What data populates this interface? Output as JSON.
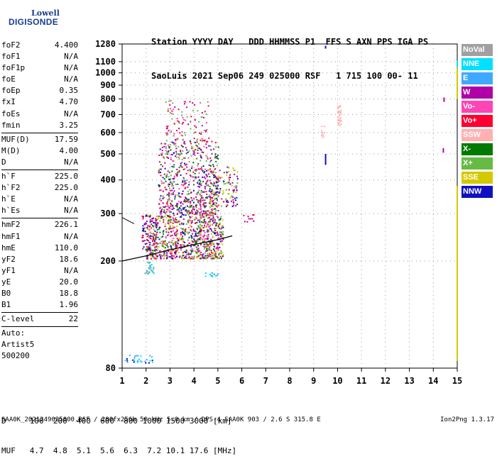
{
  "logo": {
    "line1": "Lowell",
    "line2": "DIGISONDE"
  },
  "header": {
    "line1": "Station YYYY DAY   DDD HHMMSS P1  FFS S AXN PPS IGA PS",
    "line2": "SaoLuis 2021 Sep06 249 025000 RSF   1 715 100 00- 11"
  },
  "params": [
    {
      "label": "foF2",
      "value": "4.400"
    },
    {
      "label": "foF1",
      "value": "N/A"
    },
    {
      "label": "foF1p",
      "value": "N/A"
    },
    {
      "label": "foE",
      "value": "N/A"
    },
    {
      "label": "foEp",
      "value": "0.35"
    },
    {
      "label": "fxI",
      "value": "4.70"
    },
    {
      "label": "foEs",
      "value": "N/A"
    },
    {
      "label": "fmin",
      "value": "3.25"
    },
    {
      "sep": true
    },
    {
      "label": "MUF(D)",
      "value": "17.59"
    },
    {
      "label": "M(D)",
      "value": "4.00"
    },
    {
      "label": "D",
      "value": "N/A"
    },
    {
      "sep": true
    },
    {
      "label": "h`F",
      "value": "225.0"
    },
    {
      "label": "h`F2",
      "value": "225.0"
    },
    {
      "label": "h`E",
      "value": "N/A"
    },
    {
      "label": "h`Es",
      "value": "N/A"
    },
    {
      "sep": true
    },
    {
      "label": "hmF2",
      "value": "226.1"
    },
    {
      "label": "hmF1",
      "value": "N/A"
    },
    {
      "label": "hmE",
      "value": "110.0"
    },
    {
      "label": "yF2",
      "value": "18.6"
    },
    {
      "label": "yF1",
      "value": "N/A"
    },
    {
      "label": "yE",
      "value": "20.0"
    },
    {
      "label": "B0",
      "value": "18.8"
    },
    {
      "label": "B1",
      "value": "1.96"
    },
    {
      "sep": true
    },
    {
      "label": "C-level",
      "value": "22"
    },
    {
      "sep": true
    },
    {
      "label": "Auto:",
      "value": ""
    },
    {
      "label": "Artist5",
      "value": ""
    },
    {
      "label": "500200",
      "value": ""
    }
  ],
  "distance_table": {
    "d_row": "D     100  200  400  600  800 1000 1500 3000 [km]",
    "muf_row": "MUF   4.7  4.8  5.1  5.6  6.3  7.2 10.1 17.6 [MHz]"
  },
  "footer": "SAA0K_2021249025000.RSF / 280fx256h 50 kHz 5.0 km / DPS-4 SAA0K 903 / 2.6 S 315.8 E",
  "version": "Ion2Png 1.3.17",
  "legend": [
    {
      "label": "NoVal",
      "color": "#a0a0a0"
    },
    {
      "label": "NNE",
      "color": "#00e0ff"
    },
    {
      "label": "E",
      "color": "#3fa9ff"
    },
    {
      "label": "W",
      "color": "#b000a8"
    },
    {
      "label": "Vo-",
      "color": "#ff44b4"
    },
    {
      "label": "Vo+",
      "color": "#ff0030"
    },
    {
      "label": "SSW",
      "color": "#ffb0b0"
    },
    {
      "label": "X-",
      "color": "#007a00"
    },
    {
      "label": "X+",
      "color": "#66bb44"
    },
    {
      "label": "SSE",
      "color": "#d4c800"
    },
    {
      "label": "NNW",
      "color": "#1010c0"
    }
  ],
  "chart_data": {
    "type": "scatter",
    "title": "",
    "xlabel": "",
    "ylabel": "",
    "xlim": [
      1,
      15
    ],
    "ylim": [
      80,
      1280
    ],
    "y_scale": "log",
    "x_ticks": [
      1,
      2,
      3,
      4,
      5,
      6,
      7,
      8,
      9,
      10,
      11,
      12,
      13,
      14,
      15
    ],
    "y_ticks": [
      80,
      200,
      300,
      400,
      500,
      600,
      700,
      800,
      900,
      1000,
      1100,
      1280
    ],
    "grid": true,
    "legend_position": "right",
    "trace_line": [
      [
        1,
        200
      ],
      [
        2,
        209
      ],
      [
        3,
        220
      ],
      [
        4,
        230
      ],
      [
        5,
        240
      ],
      [
        5.6,
        248
      ]
    ],
    "clusters": [
      {
        "x": [
          2.0,
          5.2
        ],
        "y": [
          205,
          300
        ],
        "colors": [
          "W",
          "Vo+",
          "NNW",
          "X-",
          "X+",
          "SSE",
          "Vo-"
        ],
        "density": 900
      },
      {
        "x": [
          2.5,
          5.0
        ],
        "y": [
          300,
          560
        ],
        "colors": [
          "W",
          "Vo+",
          "Vo-",
          "X+",
          "X-",
          "NNW"
        ],
        "density": 650
      },
      {
        "x": [
          2.8,
          4.6
        ],
        "y": [
          560,
          800
        ],
        "colors": [
          "W",
          "Vo-",
          "X+",
          "Vo+"
        ],
        "density": 110
      },
      {
        "x": [
          4.6,
          5.8
        ],
        "y": [
          320,
          450
        ],
        "colors": [
          "W",
          "X+",
          "Vo+",
          "SSE",
          "NNW"
        ],
        "density": 140
      },
      {
        "x": [
          1.8,
          2.4
        ],
        "y": [
          220,
          300
        ],
        "colors": [
          "NNW",
          "Vo+",
          "W"
        ],
        "density": 60
      },
      {
        "x": [
          1.9,
          2.3
        ],
        "y": [
          180,
          200
        ],
        "colors": [
          "NNE",
          "X+",
          "E"
        ],
        "density": 25
      },
      {
        "x": [
          1.1,
          2.3
        ],
        "y": [
          84,
          90
        ],
        "colors": [
          "NNW",
          "NNE",
          "E"
        ],
        "density": 30
      },
      {
        "x": [
          4.4,
          5.0
        ],
        "y": [
          176,
          182
        ],
        "colors": [
          "NNE",
          "E"
        ],
        "density": 14
      },
      {
        "x": [
          5.8,
          6.8
        ],
        "y": [
          280,
          300
        ],
        "colors": [
          "Vo+",
          "W"
        ],
        "density": 10
      },
      {
        "x": [
          9.98,
          10.12
        ],
        "y": [
          640,
          760
        ],
        "colors": [
          "SSW"
        ],
        "density": 30
      },
      {
        "x": [
          9.3,
          9.45
        ],
        "y": [
          580,
          650
        ],
        "colors": [
          "SSW"
        ],
        "density": 10
      }
    ],
    "vertical_marks": [
      {
        "x": 9.5,
        "y": [
          1230,
          1260
        ],
        "color": "NNW"
      },
      {
        "x": 9.5,
        "y": [
          455,
          500
        ],
        "color": "NNW"
      },
      {
        "x": 14.45,
        "y": [
          780,
          810
        ],
        "color": "W"
      },
      {
        "x": 14.42,
        "y": [
          505,
          525
        ],
        "color": "W"
      },
      {
        "x": 15.0,
        "y": [
          85,
          380
        ],
        "color": "SSE"
      },
      {
        "x": 15.0,
        "y": [
          800,
          1100
        ],
        "color": "SSE"
      },
      {
        "x": 15.0,
        "y": [
          1050,
          1110
        ],
        "color": "NNE"
      }
    ]
  }
}
